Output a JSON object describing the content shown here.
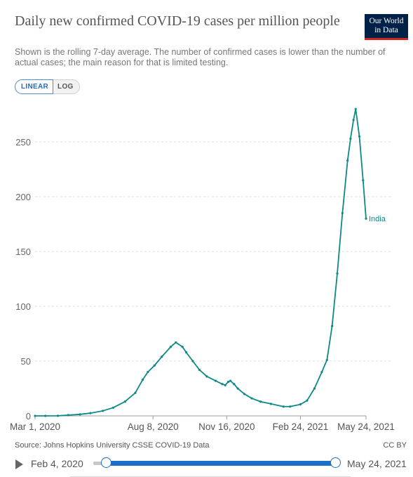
{
  "header": {
    "title": "Daily new confirmed COVID-19 cases per million people",
    "subtitle": "Shown is the rolling 7-day average. The number of confirmed cases is lower than the number of actual cases; the main reason for that is limited testing.",
    "logo_line1": "Our World",
    "logo_line2": "in Data"
  },
  "scale_toggle": {
    "linear": "LINEAR",
    "log": "LOG",
    "selected": "LINEAR"
  },
  "colors": {
    "series": "#0d8a85",
    "grid": "#dddddd",
    "logo_bg": "#002147",
    "logo_accent": "#ce261e",
    "slider": "#1a70c9"
  },
  "chart_data": {
    "type": "line",
    "title": "Daily new confirmed COVID-19 cases per million people",
    "ylim": [
      0,
      280
    ],
    "yticks": [
      0,
      50,
      100,
      150,
      200,
      250
    ],
    "ytick_labels": [
      "0",
      "50",
      "100",
      "150",
      "200",
      "250"
    ],
    "xlim": [
      "2020-03-01",
      "2021-05-24"
    ],
    "xticks": [
      "2020-03-01",
      "2020-08-08",
      "2020-11-16",
      "2021-02-24",
      "2021-05-24"
    ],
    "xtick_labels": [
      "Mar 1, 2020",
      "Aug 8, 2020",
      "Nov 16, 2020",
      "Feb 24, 2021",
      "May 24, 2021"
    ],
    "grid": true,
    "series": [
      {
        "name": "India",
        "x": [
          "2020-03-01",
          "2020-03-15",
          "2020-04-01",
          "2020-04-15",
          "2020-05-01",
          "2020-05-15",
          "2020-06-01",
          "2020-06-15",
          "2020-07-01",
          "2020-07-15",
          "2020-07-25",
          "2020-08-01",
          "2020-08-10",
          "2020-08-20",
          "2020-09-01",
          "2020-09-08",
          "2020-09-17",
          "2020-09-22",
          "2020-10-01",
          "2020-10-10",
          "2020-10-20",
          "2020-11-01",
          "2020-11-10",
          "2020-11-14",
          "2020-11-18",
          "2020-11-21",
          "2020-11-26",
          "2020-12-01",
          "2020-12-10",
          "2020-12-20",
          "2021-01-01",
          "2021-01-15",
          "2021-02-01",
          "2021-02-10",
          "2021-02-24",
          "2021-03-05",
          "2021-03-15",
          "2021-03-25",
          "2021-04-01",
          "2021-04-08",
          "2021-04-15",
          "2021-04-22",
          "2021-04-29",
          "2021-05-03",
          "2021-05-07",
          "2021-05-10",
          "2021-05-15",
          "2021-05-20",
          "2021-05-24"
        ],
        "values": [
          0,
          0,
          0.1,
          0.7,
          1.4,
          2.5,
          4.6,
          7.5,
          13,
          21,
          33,
          40,
          46,
          54,
          63,
          67,
          63,
          58,
          50,
          42,
          36,
          32,
          29,
          28,
          31,
          32,
          29,
          25,
          20,
          16,
          13,
          11,
          8.5,
          8.5,
          10.5,
          14,
          25,
          40,
          51,
          82,
          130,
          185,
          233,
          253,
          270,
          280,
          255,
          215,
          180
        ]
      }
    ]
  },
  "footer": {
    "source": "Source: Johns Hopkins University CSSE COVID-19 Data",
    "license": "CC BY"
  },
  "timeline": {
    "start_label": "Feb 4, 2020",
    "end_label": "May 24, 2021"
  }
}
